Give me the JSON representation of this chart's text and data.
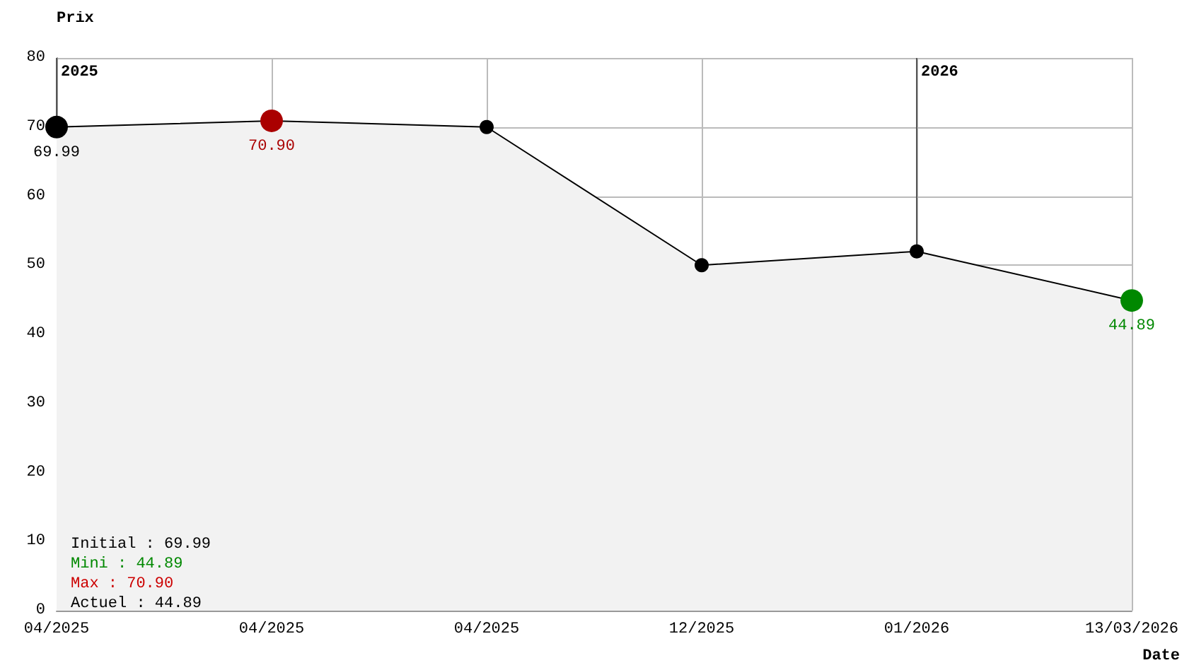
{
  "chart_data": {
    "type": "area",
    "xlabel": "Date",
    "ylabel": "Prix",
    "categories": [
      "04/2025",
      "04/2025",
      "04/2025",
      "12/2025",
      "01/2026",
      "13/03/2026"
    ],
    "values": [
      69.99,
      70.9,
      70,
      50,
      52,
      44.89
    ],
    "color": "#000000",
    "colors": [
      "#000000",
      "#aa0000",
      "#000000",
      "#000000",
      "#000000",
      "#008800"
    ],
    "value_labels": [
      "69.99",
      "70.90",
      null,
      null,
      null,
      "44.89"
    ],
    "ylim": [
      0,
      80
    ],
    "yticks": [
      0,
      10,
      20,
      30,
      40,
      50,
      60,
      70,
      80
    ],
    "grid": true,
    "marker": "circle",
    "line_style": "solid",
    "ref_lines": [
      {
        "axis": "x",
        "value": "04/2025",
        "label": "2025"
      },
      {
        "axis": "x",
        "value": "01/2026",
        "label": "2026"
      }
    ],
    "annotations": [
      "Initial : 69.99",
      "Mini : 44.89",
      "Max : 70.90",
      "Actuel : 44.89"
    ]
  }
}
